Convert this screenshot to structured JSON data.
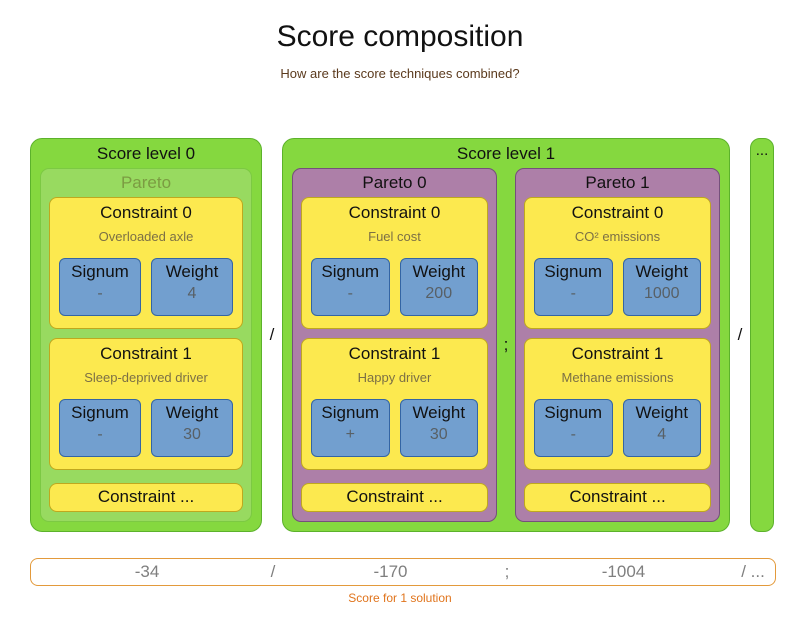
{
  "title": "Score composition",
  "subtitle": "How are the score techniques combined?",
  "colors": {
    "green-fill": "#85d83f",
    "green-border": "#5cb22b",
    "pareto-green-fill": "#98da60",
    "pareto-green-border": "#7cc943",
    "pareto-green-text": "#7b9c42",
    "purple-fill": "#ad7fa8",
    "purple-border": "#75507b",
    "yellow-fill": "#fce94f",
    "yellow-border": "#bfa81e",
    "blue-fill": "#729fcf",
    "blue-border": "#3465a4",
    "desc-text": "#7c7045",
    "value-text": "#586066",
    "subtitle-text": "#5b3a1d",
    "score-border": "#e39a3b",
    "score-text": "#7f7f7f",
    "score-caption": "#e0741c"
  },
  "diagram": {
    "level_separator": "/",
    "trailing_separator": "/",
    "ellipsis_label": "...",
    "levels": [
      {
        "label": "Score level 0",
        "paretos": [
          {
            "label": "Pareto",
            "more": "Constraint ...",
            "constraints": [
              {
                "label": "Constraint 0",
                "description": "Overloaded axle",
                "signum": {
                  "label": "Signum",
                  "value": "-"
                },
                "weight": {
                  "label": "Weight",
                  "value": "4"
                }
              },
              {
                "label": "Constraint 1",
                "description": "Sleep-deprived driver",
                "signum": {
                  "label": "Signum",
                  "value": "-"
                },
                "weight": {
                  "label": "Weight",
                  "value": "30"
                }
              }
            ]
          }
        ]
      },
      {
        "label": "Score level 1",
        "pareto_separator": ";",
        "paretos": [
          {
            "label": "Pareto 0",
            "more": "Constraint ...",
            "constraints": [
              {
                "label": "Constraint 0",
                "description": "Fuel cost",
                "signum": {
                  "label": "Signum",
                  "value": "-"
                },
                "weight": {
                  "label": "Weight",
                  "value": "200"
                }
              },
              {
                "label": "Constraint 1",
                "description": "Happy driver",
                "signum": {
                  "label": "Signum",
                  "value": "+"
                },
                "weight": {
                  "label": "Weight",
                  "value": "30"
                }
              }
            ]
          },
          {
            "label": "Pareto 1",
            "more": "Constraint ...",
            "constraints": [
              {
                "label": "Constraint 0",
                "description": "CO² emissions",
                "signum": {
                  "label": "Signum",
                  "value": "-"
                },
                "weight": {
                  "label": "Weight",
                  "value": "1000"
                }
              },
              {
                "label": "Constraint 1",
                "description": "Methane emissions",
                "signum": {
                  "label": "Signum",
                  "value": "-"
                },
                "weight": {
                  "label": "Weight",
                  "value": "4"
                }
              }
            ]
          }
        ]
      }
    ]
  },
  "score_bar": {
    "values": [
      "-34",
      "/",
      "-170",
      ";",
      "-1004",
      "/ ..."
    ],
    "caption": "Score for 1 solution"
  }
}
